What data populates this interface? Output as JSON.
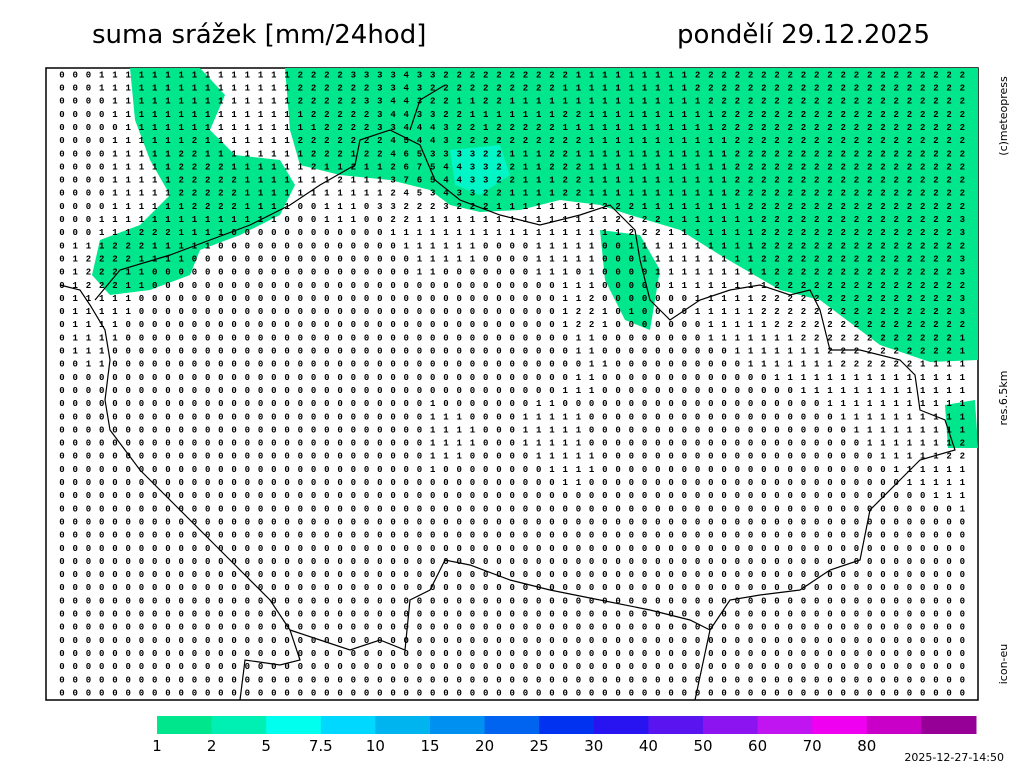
{
  "header": {
    "title": "suma srážek [mm/24hod]",
    "date": "pondělí 29.12.2025"
  },
  "side_labels": [
    "(c)meteopress",
    "res.6.5km",
    "icon-eu"
  ],
  "grid": {
    "rows": [
      "000111111111111111222233334332222222222111111111222222222222222222222",
      "000111111111111111222222334322222222221111111111222222222222222222222",
      "000011111111111111222223344322112211111111111111122222222222222222222",
      "000011111111111111122222344332211111112211111111112222222222222222222",
      "000001111111111111112222334443221222221111111111112222222222222222222",
      "000011111121111111222222245443222222222211111111111222222222222222222",
      "000011111221111111122212246533332211122111111111111222222222222222222",
      "000011111222211111121121126754433221122211111111111222222222222222222",
      "000011111222221111111211137654433221112211111111111222222222222222222",
      "000011111222221111111111124534332211112211111111111222222222222222222",
      "000011111122221111001110332223222111111112221111111122222222222222222",
      "000111111111111110001110022111111111111111222211111112222222222222223",
      "000111222111100000000000011111111111111111122211111112222222222222223",
      "011122211111000000000000001111110000111110011111111112222222222222222",
      "012222111100000000000000000111110000111110001111111112222222222222223",
      "012221100000000000000000000110000000111010000111111111222222222222223",
      "012221100000000000000000000000000000001110000011111111222222222222222",
      "011111000000000000000000000000000000001120000000111112222222222222223",
      "011111000000000000000000000000000000001221010000111112222222222222223",
      "011110000000000000000000000000000000001221000000011111222222222222222",
      "011110000000000000000000000000000000000110000000011111112222222222221",
      "011100000000000000000000000000000000000110000000000111111122222222221",
      "001100000000000000000000000000000000000011000000000011111112222221111",
      "000000000000000000000000000000000000000110000000000000111111111111111",
      "000000000000000000000000000000000000001110000000000000001111111111111",
      "000000000000000000000000000010000000110000000000000000000011111111111",
      "000000000000000000000000000011100001111100000000000000000001111111111",
      "000000000000000000000000000011110001111100000000000000000000111111111",
      "000000000000000000000000000011110001111100000000000000000000011111112",
      "000000000000000000000000000011100000111110000000000000000000001111122",
      "000000000000000000000000000010000000011110000000000000000000000111111",
      "000000000000000000000000000000000000001100000000000000000000000011111",
      "000000000000000000000000000000000000000000000000000000000000000000111",
      "000000000000000000000000000000000000000000000000000000000000000000001",
      "000000000000000000000000000000000000000000000000000000000000000000000",
      "000000000000000000000000000000000000000000000000000000000000000000000",
      "000000000000000000000000000000000000000000000000000000000000000000000",
      "000000000000000000000000000000000000000000000000000000000000000000000",
      "000000000000000000000000000000000000000000000000000000000000000000000",
      "000000000000000000000000000000000000000000000000000000000000000000000",
      "000000000000000000000000000000000000000000000000000000000000000000000",
      "000000000000000000000000000000000000000000000000000000000000000000000",
      "000000000000000000000000000000000000000000000000000000000000000000000",
      "000000000000000000000000000000000000000000000000000000000000000000000",
      "000000000000000000000000000000000000000000000000000000000000000000000",
      "000000000000000000000000000000000000000000000000000000000000000000000",
      "000000000000000000000000000000000000000000000000000000000000000000000",
      "000000000000000000000000000000000000000000000000000000000000000000000"
    ]
  },
  "legend": {
    "colors": [
      "#00e68c",
      "#00f0b4",
      "#00ffee",
      "#00d8ff",
      "#00b4f0",
      "#0090f0",
      "#0064f0",
      "#0032f0",
      "#2814f0",
      "#5a14f0",
      "#8c14f0",
      "#c014f0",
      "#f000f0",
      "#c800c8",
      "#960096"
    ],
    "labels": [
      "1",
      "2",
      "5",
      "7.5",
      "10",
      "15",
      "20",
      "25",
      "30",
      "40",
      "50",
      "60",
      "70",
      "80"
    ]
  },
  "timestamp": "2025-12-27-14:50"
}
